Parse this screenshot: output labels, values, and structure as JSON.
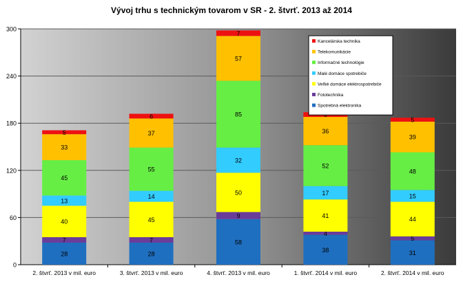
{
  "chart_data": {
    "type": "bar",
    "stacked": true,
    "title": "Vývoj trhu s technickým tovarom v SR - 2. štvrť. 2013 až 2014",
    "xlabel": "",
    "ylabel": "",
    "ylim": [
      0,
      300
    ],
    "yticks": [
      0,
      60,
      120,
      180,
      240,
      300
    ],
    "grid": true,
    "legend_position": "top-right",
    "background": "gradient-gray",
    "categories": [
      "2. štvrť. 2013 v mil. euro",
      "3. štvrť. 2013 v mil. euro",
      "4. štvrť. 2013 v mil. euro",
      "1. štvrť. 2014 v mil. euro",
      "2. štvrť. 2014 v mil. euro"
    ],
    "series": [
      {
        "name": "Spotrebná elektronika",
        "color": "#1f6fc0",
        "values": [
          28,
          28,
          58,
          38,
          31
        ]
      },
      {
        "name": "Fototechnika",
        "color": "#6a3d9a",
        "values": [
          7,
          7,
          9,
          4,
          5
        ]
      },
      {
        "name": "Veľké domáce elektrospotrebiče",
        "color": "#ffff00",
        "values": [
          40,
          45,
          50,
          41,
          44
        ]
      },
      {
        "name": "Malé domáce spotrebiče",
        "color": "#33ccff",
        "values": [
          13,
          14,
          32,
          17,
          15
        ]
      },
      {
        "name": "Informačné technológie",
        "color": "#66ee44",
        "values": [
          45,
          55,
          85,
          52,
          48
        ]
      },
      {
        "name": "Telekomunikácie",
        "color": "#ffc000",
        "values": [
          33,
          37,
          57,
          36,
          39
        ]
      },
      {
        "name": "Kancelárska technika",
        "color": "#ee1111",
        "values": [
          5,
          6,
          7,
          6,
          5
        ]
      }
    ]
  }
}
